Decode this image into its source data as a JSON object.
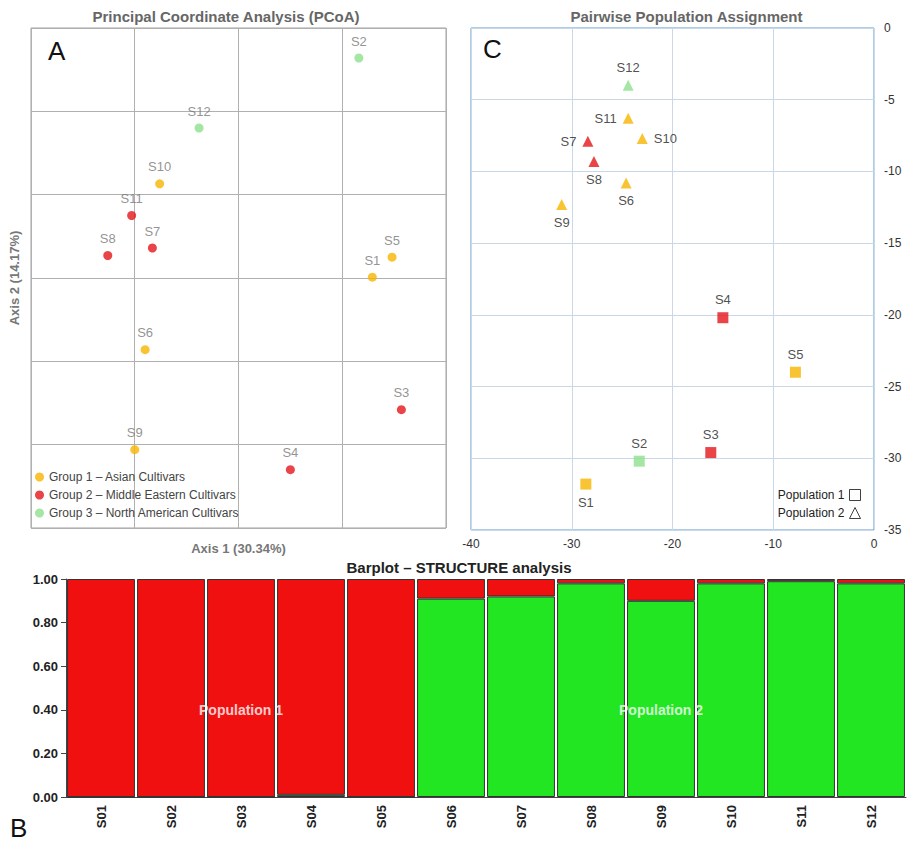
{
  "chart_data": [
    {
      "type": "scatter",
      "title": "Principal Coordinate Analysis (PCoA)",
      "annotations": [
        {
          "text": "A"
        }
      ],
      "xlabel": "Axis 1 (30.34%)",
      "ylabel": "Axis 2 (14.17%)",
      "xlim": [
        -2,
        2
      ],
      "xticks": [
        -2,
        -1,
        0,
        1,
        2
      ],
      "ylim": [
        -3,
        3
      ],
      "yticks": [
        -3,
        -2,
        -1,
        0,
        1,
        2,
        3
      ],
      "grid": true,
      "tick_labels": false,
      "legend": "lower left",
      "series": [
        {
          "name": "Group 1 – Asian Cultivars",
          "color": "#f7b500",
          "marker": "circle",
          "labels": [
            "S1",
            "S5",
            "S6",
            "S9",
            "S10"
          ],
          "x": [
            1.29,
            1.48,
            -0.9,
            -1.0,
            -0.76
          ],
          "y": [
            0.01,
            0.25,
            -0.86,
            -2.06,
            1.13
          ]
        },
        {
          "name": "Group 2 – Middle Eastern Cultivars",
          "color": "#e3161b",
          "marker": "circle",
          "labels": [
            "S3",
            "S4",
            "S7",
            "S8",
            "S11"
          ],
          "x": [
            1.57,
            0.5,
            -0.83,
            -1.26,
            -1.03
          ],
          "y": [
            -1.58,
            -2.3,
            0.36,
            0.27,
            0.75
          ]
        },
        {
          "name": "Group 3 – North American Cultivars",
          "color": "#8fe08f",
          "marker": "circle",
          "labels": [
            "S2",
            "S12"
          ],
          "x": [
            1.16,
            -0.38
          ],
          "y": [
            2.64,
            1.8
          ]
        }
      ]
    },
    {
      "type": "scatter",
      "title": "Pairwise Population Assignment",
      "annotations": [
        {
          "text": "C"
        }
      ],
      "xlim": [
        -40,
        0
      ],
      "xticks": [
        -40,
        -30,
        -20,
        -10,
        0
      ],
      "ylim": [
        -35,
        0
      ],
      "yticks": [
        -35,
        -30,
        -25,
        -20,
        -15,
        -10,
        -5,
        0
      ],
      "grid": true,
      "legend": "lower right",
      "series": [
        {
          "name": "Population 1",
          "marker": "square",
          "labels": [
            "S1",
            "S2",
            "S3",
            "S4",
            "S5"
          ],
          "x": [
            -28.6,
            -23.3,
            -16.2,
            -15.0,
            -7.8
          ],
          "y": [
            -31.8,
            -30.2,
            -29.6,
            -20.2,
            -24.0
          ],
          "colors": [
            "#f7b500",
            "#8fe08f",
            "#e3161b",
            "#e3161b",
            "#f7b500"
          ]
        },
        {
          "name": "Population 2",
          "marker": "triangle",
          "labels": [
            "S6",
            "S7",
            "S8",
            "S9",
            "S10",
            "S11",
            "S12"
          ],
          "x": [
            -24.6,
            -28.4,
            -27.8,
            -31.0,
            -23.0,
            -24.4,
            -24.4
          ],
          "y": [
            -10.8,
            -7.9,
            -9.3,
            -12.3,
            -7.7,
            -6.3,
            -4.0
          ],
          "colors": [
            "#f7b500",
            "#e3161b",
            "#e3161b",
            "#f7b500",
            "#f7b500",
            "#f7b500",
            "#8fe08f"
          ]
        }
      ]
    },
    {
      "type": "bar",
      "title": "Barplot – STRUCTURE analysis",
      "stacked": true,
      "categories": [
        "S01",
        "S02",
        "S03",
        "S04",
        "S05",
        "S06",
        "S07",
        "S08",
        "S09",
        "S10",
        "S11",
        "S12"
      ],
      "ylim": [
        0,
        1
      ],
      "yticks": [
        {
          "value": 0,
          "label": "0.00"
        },
        {
          "value": 0.2,
          "label": "0.20"
        },
        {
          "value": 0.4,
          "label": "0.40"
        },
        {
          "value": 0.6,
          "label": "0.60"
        },
        {
          "value": 0.8,
          "label": "0.80"
        },
        {
          "value": 1,
          "label": "1.00"
        }
      ],
      "series": [
        {
          "color": "#22e622",
          "values": [
            0.0,
            0.0,
            0.0,
            0.01,
            0.0,
            0.91,
            0.92,
            0.98,
            0.9,
            0.98,
            0.99,
            0.98
          ]
        },
        {
          "color": "#f01010",
          "values": [
            1.0,
            1.0,
            1.0,
            0.99,
            1.0,
            0.09,
            0.08,
            0.02,
            0.1,
            0.02,
            0.01,
            0.02
          ]
        }
      ],
      "annotations": [
        {
          "text": "B"
        },
        {
          "text": "Population 1",
          "x": "S03",
          "y": 0.4
        },
        {
          "text": "Population 2",
          "x": "S09",
          "y": 0.4
        }
      ]
    }
  ]
}
